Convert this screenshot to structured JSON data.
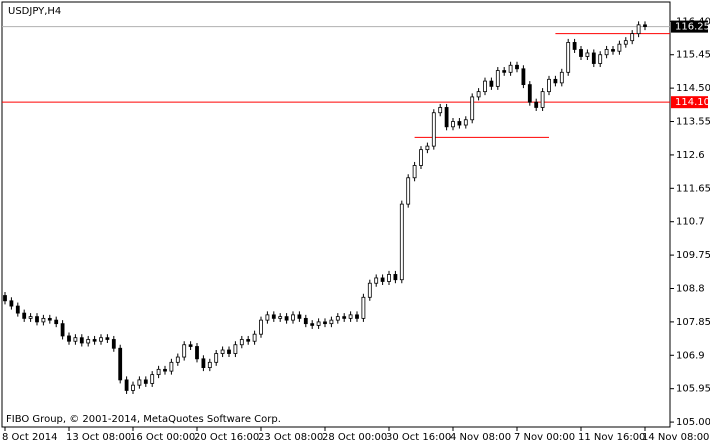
{
  "chart_data": {
    "type": "candlestick",
    "title": "USDJPY,H4",
    "watermark": "FIBO Group, © 2001-2014, MetaQuotes Software Corp.",
    "categories": [
      "8 Oct 2014",
      null,
      null,
      null,
      null,
      null,
      null,
      null,
      null,
      null,
      "13 Oct 08:00",
      null,
      null,
      null,
      null,
      null,
      null,
      null,
      null,
      null,
      "16 Oct 00:00",
      null,
      null,
      null,
      null,
      null,
      null,
      null,
      null,
      null,
      "20 Oct 16:00",
      null,
      null,
      null,
      null,
      null,
      null,
      null,
      null,
      null,
      "23 Oct 08:00",
      null,
      null,
      null,
      null,
      null,
      null,
      null,
      null,
      null,
      "28 Oct 00:00",
      null,
      null,
      null,
      null,
      null,
      null,
      null,
      null,
      null,
      "30 Oct 16:00",
      null,
      null,
      null,
      null,
      null,
      null,
      null,
      null,
      null,
      "4 Nov 08:00",
      null,
      null,
      null,
      null,
      null,
      null,
      null,
      null,
      null,
      "7 Nov 00:00",
      null,
      null,
      null,
      null,
      null,
      null,
      null,
      null,
      null,
      "11 Nov 16:00",
      null,
      null,
      null,
      null,
      null,
      null,
      null,
      null,
      null,
      "14 Nov 08:00"
    ],
    "open": [
      108.6,
      108.45,
      108.3,
      108.1,
      107.95,
      108.0,
      107.85,
      107.95,
      107.9,
      107.8,
      107.45,
      107.3,
      107.4,
      107.25,
      107.35,
      107.3,
      107.4,
      107.35,
      107.1,
      106.2,
      105.9,
      106.05,
      106.2,
      106.1,
      106.35,
      106.5,
      106.45,
      106.7,
      106.85,
      107.2,
      107.15,
      106.8,
      106.55,
      106.7,
      106.95,
      107.05,
      106.95,
      107.2,
      107.35,
      107.3,
      107.5,
      107.9,
      108.05,
      107.95,
      108.0,
      107.9,
      108.05,
      107.95,
      107.8,
      107.75,
      107.85,
      107.8,
      107.9,
      108.0,
      107.95,
      108.05,
      107.95,
      108.55,
      108.95,
      109.1,
      109.0,
      109.2,
      109.05,
      111.2,
      111.95,
      112.3,
      112.75,
      112.85,
      113.8,
      113.95,
      113.4,
      113.55,
      113.45,
      113.6,
      114.25,
      114.4,
      114.7,
      114.55,
      115.0,
      114.95,
      115.15,
      115.05,
      114.6,
      114.1,
      113.95,
      114.4,
      114.75,
      114.65,
      114.95,
      115.8,
      115.6,
      115.4,
      115.5,
      115.2,
      115.45,
      115.6,
      115.55,
      115.75,
      115.85,
      116.05,
      116.3
    ],
    "high": [
      108.7,
      108.55,
      108.4,
      108.2,
      108.1,
      108.1,
      108.05,
      108.05,
      108.0,
      107.9,
      107.55,
      107.5,
      107.5,
      107.45,
      107.45,
      107.5,
      107.5,
      107.45,
      107.2,
      106.3,
      106.15,
      106.3,
      106.3,
      106.45,
      106.6,
      106.6,
      106.8,
      106.95,
      107.3,
      107.3,
      107.25,
      106.9,
      106.8,
      107.05,
      107.15,
      107.15,
      107.3,
      107.45,
      107.45,
      107.6,
      108.0,
      108.15,
      108.15,
      108.1,
      108.1,
      108.15,
      108.15,
      108.05,
      107.9,
      107.95,
      107.95,
      108.0,
      108.1,
      108.1,
      108.15,
      108.15,
      108.65,
      109.05,
      109.2,
      109.2,
      109.3,
      109.3,
      111.3,
      112.05,
      112.4,
      112.85,
      112.95,
      113.9,
      114.05,
      114.05,
      113.65,
      113.65,
      113.7,
      114.35,
      114.5,
      114.8,
      114.8,
      115.1,
      115.1,
      115.25,
      115.25,
      115.15,
      114.7,
      114.2,
      114.5,
      114.85,
      114.85,
      115.05,
      115.9,
      115.9,
      115.7,
      115.6,
      115.6,
      115.55,
      115.7,
      115.7,
      115.85,
      115.95,
      116.15,
      116.4,
      116.4
    ],
    "low": [
      108.35,
      108.2,
      108.0,
      107.85,
      107.85,
      107.75,
      107.75,
      107.8,
      107.7,
      107.35,
      107.2,
      107.2,
      107.15,
      107.15,
      107.2,
      107.2,
      107.25,
      107.0,
      106.1,
      105.8,
      105.8,
      105.95,
      106.0,
      106.0,
      106.25,
      106.35,
      106.35,
      106.6,
      106.75,
      107.05,
      106.7,
      106.45,
      106.45,
      106.6,
      106.85,
      106.85,
      106.85,
      107.1,
      107.2,
      107.2,
      107.4,
      107.8,
      107.85,
      107.85,
      107.8,
      107.8,
      107.85,
      107.7,
      107.65,
      107.65,
      107.7,
      107.7,
      107.8,
      107.85,
      107.85,
      107.85,
      107.85,
      108.45,
      108.85,
      108.9,
      108.9,
      108.95,
      108.95,
      111.1,
      111.85,
      112.2,
      112.65,
      112.75,
      113.7,
      113.3,
      113.3,
      113.35,
      113.35,
      113.5,
      114.15,
      114.3,
      114.45,
      114.45,
      114.85,
      114.85,
      114.95,
      114.5,
      114.0,
      113.85,
      113.85,
      114.3,
      114.55,
      114.55,
      114.85,
      115.5,
      115.3,
      115.3,
      115.1,
      115.1,
      115.35,
      115.45,
      115.45,
      115.65,
      115.75,
      115.95,
      116.15
    ],
    "close": [
      108.45,
      108.3,
      108.1,
      107.95,
      108.0,
      107.85,
      107.95,
      107.9,
      107.8,
      107.45,
      107.3,
      107.4,
      107.25,
      107.35,
      107.3,
      107.4,
      107.35,
      107.1,
      106.2,
      105.9,
      106.05,
      106.2,
      106.1,
      106.35,
      106.5,
      106.45,
      106.7,
      106.85,
      107.2,
      107.15,
      106.8,
      106.55,
      106.7,
      106.95,
      107.05,
      106.95,
      107.2,
      107.35,
      107.3,
      107.5,
      107.9,
      108.05,
      107.95,
      108.0,
      107.9,
      108.05,
      107.95,
      107.8,
      107.75,
      107.85,
      107.8,
      107.9,
      108.0,
      107.95,
      108.05,
      107.95,
      108.55,
      108.95,
      109.1,
      109.0,
      109.2,
      109.05,
      111.2,
      111.95,
      112.3,
      112.75,
      112.85,
      113.8,
      113.95,
      113.4,
      113.55,
      113.45,
      113.6,
      114.25,
      114.4,
      114.7,
      114.55,
      115.0,
      114.95,
      115.15,
      115.05,
      114.6,
      114.1,
      113.95,
      114.4,
      114.75,
      114.65,
      114.95,
      115.8,
      115.6,
      115.4,
      115.5,
      115.2,
      115.45,
      115.6,
      115.55,
      115.75,
      115.85,
      116.05,
      116.3,
      116.25
    ],
    "ylim": [
      104.86,
      116.95
    ],
    "yticks": [
      {
        "value": 105,
        "label": "105.00"
      },
      105.95,
      106.9,
      107.85,
      108.8,
      109.75,
      110.7,
      111.65,
      112.6,
      113.55,
      {
        "value": 114.5,
        "label": "114.50"
      },
      115.45,
      {
        "value": 116.4,
        "label": "116.40"
      }
    ],
    "price_line": {
      "value": 116.25,
      "label": "116.25",
      "color": "#000000"
    },
    "level_line": {
      "value": 114.1,
      "label": "114.10",
      "color": "#ff0000"
    },
    "segments": [
      {
        "value": 116.05,
        "from": 86,
        "to": 104,
        "color": "#ff0000"
      },
      {
        "value": 113.1,
        "from": 64,
        "to": 85,
        "color": "#ff0000"
      }
    ],
    "bull_color": "#ffffff",
    "bear_color": "#000000"
  }
}
